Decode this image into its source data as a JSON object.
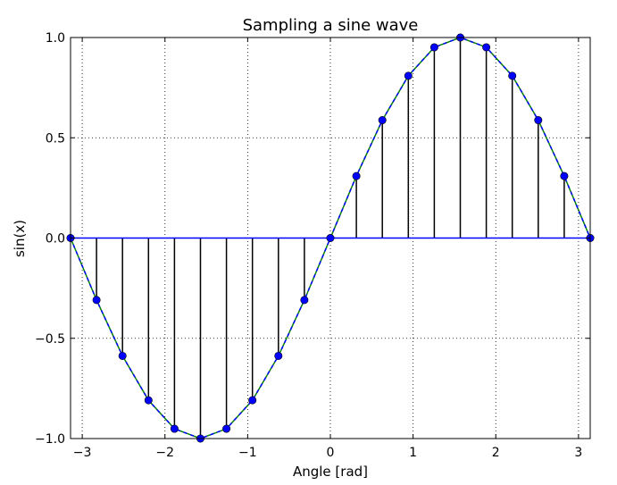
{
  "chart_data": {
    "type": "line",
    "title": "Sampling a sine wave",
    "xlabel": "Angle [rad]",
    "ylabel": "sin(x)",
    "xlim": [
      -3.14159,
      3.14159
    ],
    "ylim": [
      -1.0,
      1.0
    ],
    "grid": true,
    "x_ticks": [
      -3,
      -2,
      -1,
      0,
      1,
      2,
      3
    ],
    "x_tick_labels": [
      "−3",
      "−2",
      "−1",
      "0",
      "1",
      "2",
      "3"
    ],
    "y_ticks": [
      -1.0,
      -0.5,
      0.0,
      0.5,
      1.0
    ],
    "y_tick_labels": [
      "−1.0",
      "−0.5",
      "0.0",
      "0.5",
      "1.0"
    ],
    "series": [
      {
        "kind": "curve",
        "colors": [
          "#008000",
          "#0000ff"
        ],
        "x": [
          -3.1416,
          -2.8274,
          -2.5133,
          -2.1991,
          -1.885,
          -1.5708,
          -1.2566,
          -0.9425,
          -0.6283,
          -0.3142,
          0.0,
          0.3142,
          0.6283,
          0.9425,
          1.2566,
          1.5708,
          1.885,
          2.1991,
          2.5133,
          2.8274,
          3.1416
        ],
        "y": [
          0.0,
          -0.309,
          -0.5878,
          -0.809,
          -0.9511,
          -1.0,
          -0.9511,
          -0.809,
          -0.5878,
          -0.309,
          0.0,
          0.309,
          0.5878,
          0.809,
          0.9511,
          1.0,
          0.9511,
          0.809,
          0.5878,
          0.309,
          0.0
        ]
      },
      {
        "kind": "stem",
        "marker_color": "#0000ff",
        "stem_color": "#000000",
        "baseline_color": "#0000ff",
        "x": [
          -3.1416,
          -2.8274,
          -2.5133,
          -2.1991,
          -1.885,
          -1.5708,
          -1.2566,
          -0.9425,
          -0.6283,
          -0.3142,
          0.0,
          0.3142,
          0.6283,
          0.9425,
          1.2566,
          1.5708,
          1.885,
          2.1991,
          2.5133,
          2.8274,
          3.1416
        ],
        "y": [
          0.0,
          -0.309,
          -0.5878,
          -0.809,
          -0.9511,
          -1.0,
          -0.9511,
          -0.809,
          -0.5878,
          -0.309,
          0.0,
          0.309,
          0.5878,
          0.809,
          0.9511,
          1.0,
          0.9511,
          0.809,
          0.5878,
          0.309,
          0.0
        ]
      }
    ]
  }
}
